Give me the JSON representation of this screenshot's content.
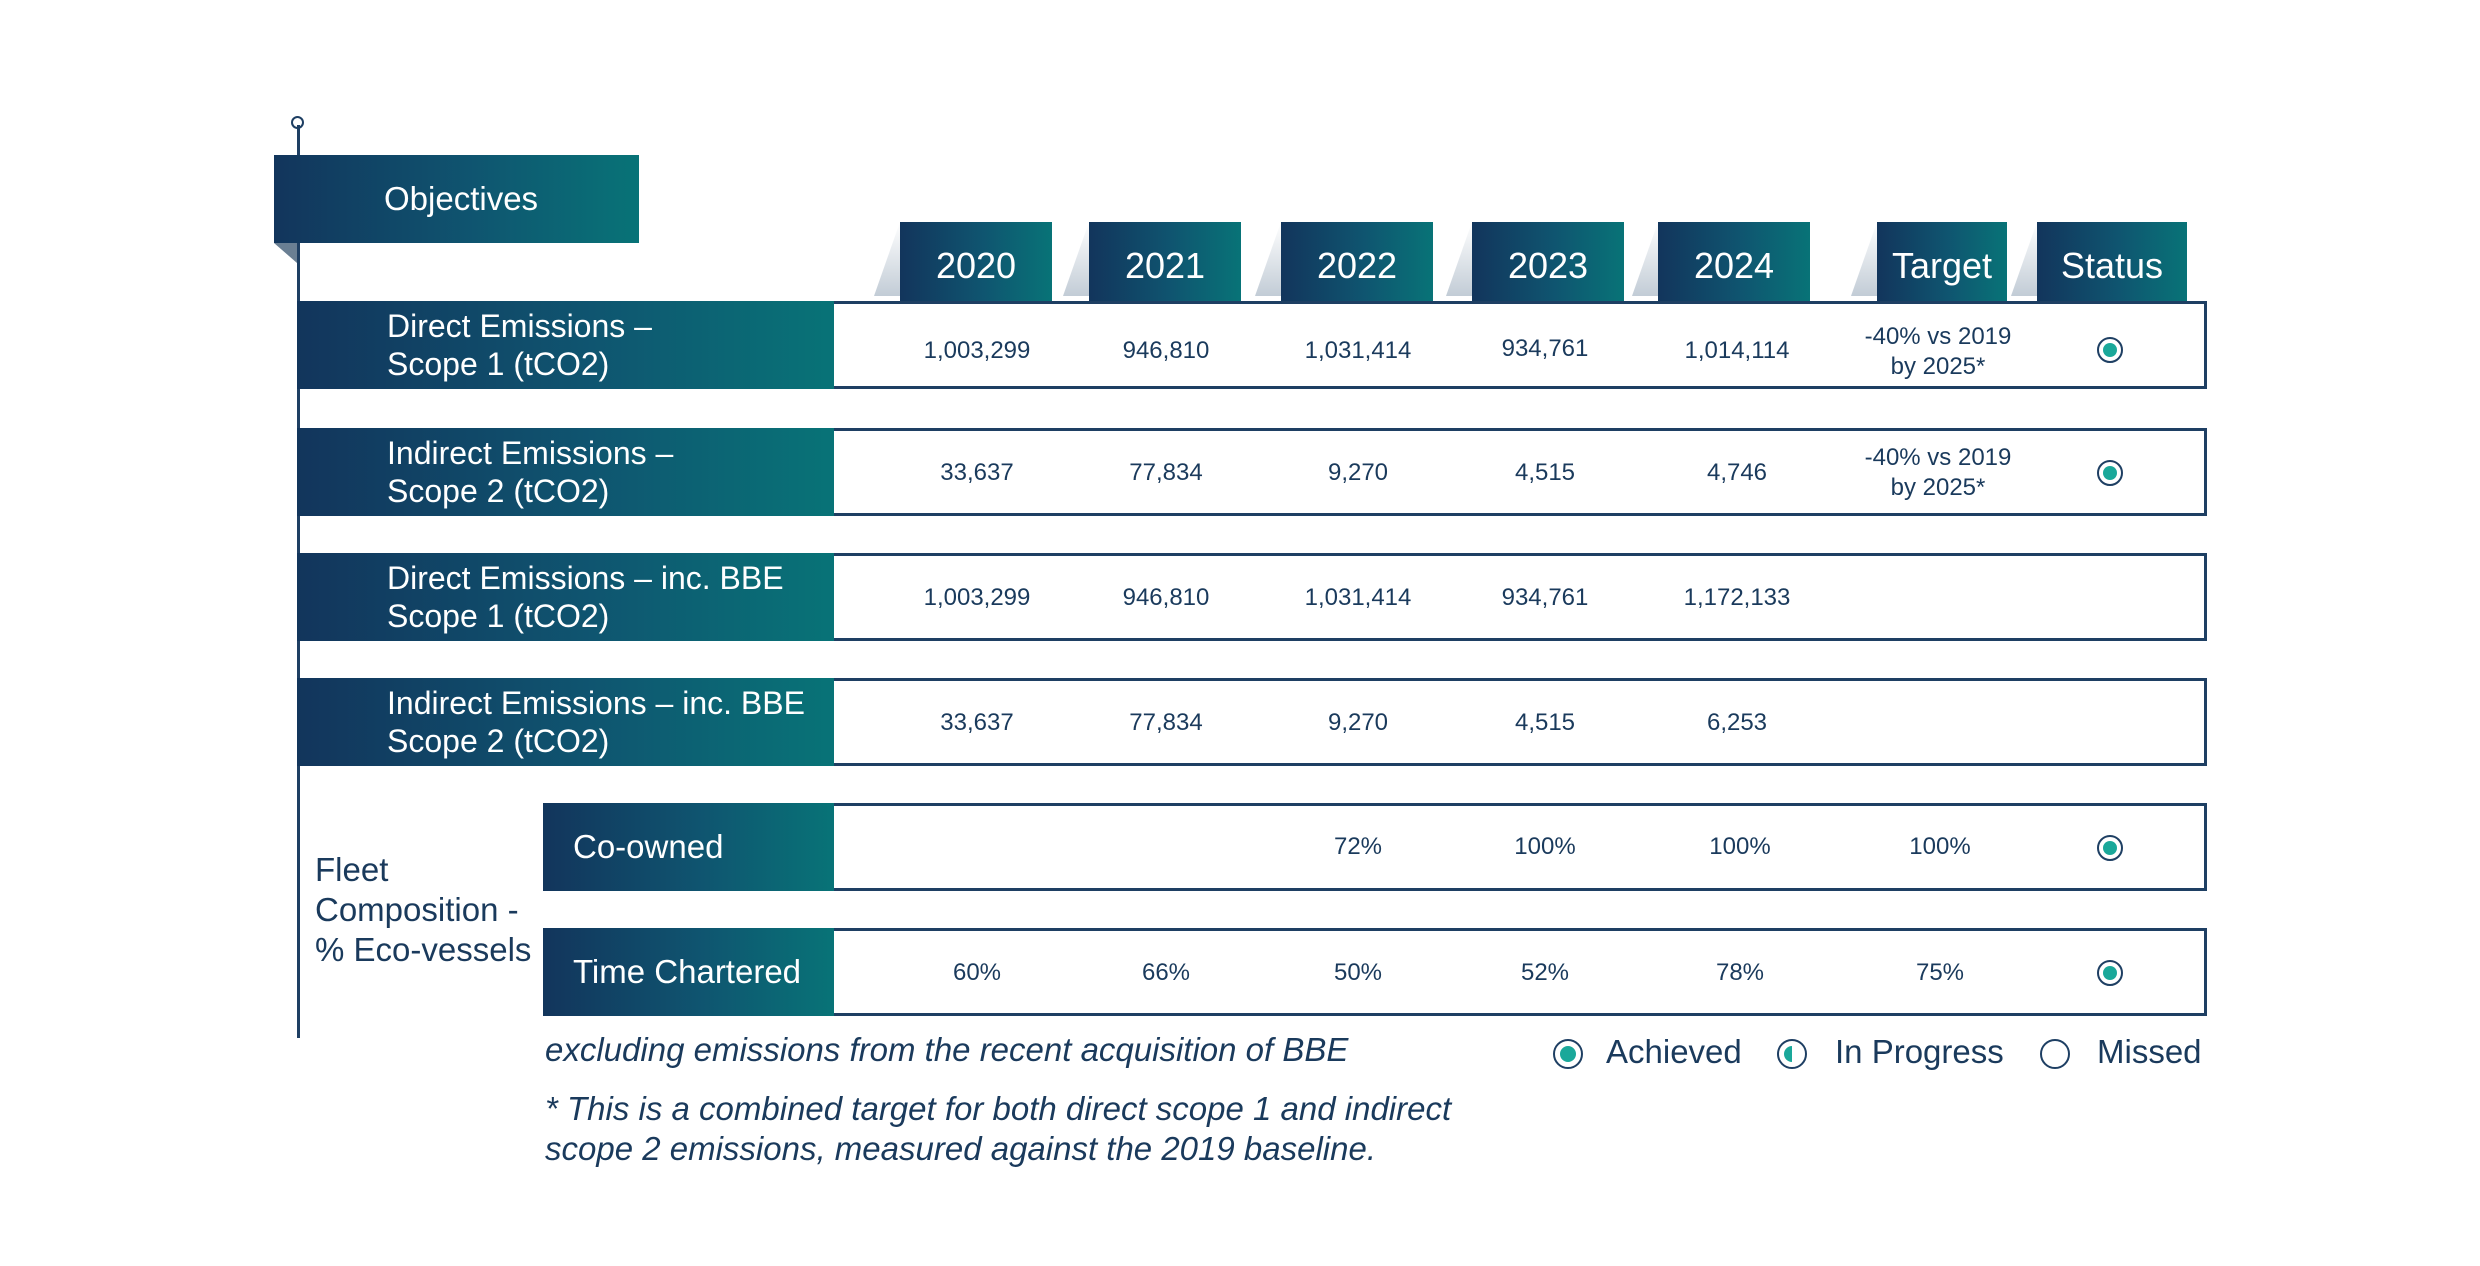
{
  "objectives_label": "Objectives",
  "columns": [
    "2020",
    "2021",
    "2022",
    "2023",
    "2024",
    "Target",
    "Status"
  ],
  "rows": [
    {
      "label1": "Direct Emissions –",
      "label2": "Scope 1 (tCO2)",
      "values": [
        "1,003,299",
        "946,810",
        "1,031,414",
        "934,761",
        "1,014,114"
      ],
      "target1": "-40% vs 2019",
      "target2": "by 2025*",
      "status": "achieved"
    },
    {
      "label1": "Indirect Emissions –",
      "label2": "Scope 2 (tCO2)",
      "values": [
        "33,637",
        "77,834",
        "9,270",
        "4,515",
        "4,746"
      ],
      "target1": "-40% vs 2019",
      "target2": "by 2025*",
      "status": "achieved"
    },
    {
      "label1": "Direct Emissions – inc. BBE",
      "label2": "Scope 1 (tCO2)",
      "values": [
        "1,003,299",
        "946,810",
        "1,031,414",
        "934,761",
        "1,172,133"
      ],
      "target1": "",
      "target2": "",
      "status": ""
    },
    {
      "label1": "Indirect Emissions – inc. BBE",
      "label2": "Scope 2 (tCO2)",
      "values": [
        "33,637",
        "77,834",
        "9,270",
        "4,515",
        "6,253"
      ],
      "target1": "",
      "target2": "",
      "status": ""
    }
  ],
  "fleet": {
    "label1": "Fleet",
    "label2": "Composition -",
    "label3": "% Eco-vessels",
    "rows": [
      {
        "label": "Co-owned",
        "values": [
          "",
          "",
          "72%",
          "100%",
          "100%"
        ],
        "target": "100%",
        "status": "achieved"
      },
      {
        "label": "Time Chartered",
        "values": [
          "60%",
          "66%",
          "50%",
          "52%",
          "78%"
        ],
        "target": "75%",
        "status": "achieved"
      }
    ]
  },
  "notes": {
    "excluding": "excluding emissions from the recent acquisition of BBE",
    "footnote1": "* This is a combined target for both direct scope 1 and indirect",
    "footnote2": "scope 2 emissions, measured against the 2019 baseline."
  },
  "legend": {
    "achieved": "Achieved",
    "in_progress": "In Progress",
    "missed": "Missed"
  },
  "colors": {
    "navy": "#12355c",
    "teal": "#087377",
    "status_fill": "#1aa89a",
    "text": "#1a3a5c"
  }
}
